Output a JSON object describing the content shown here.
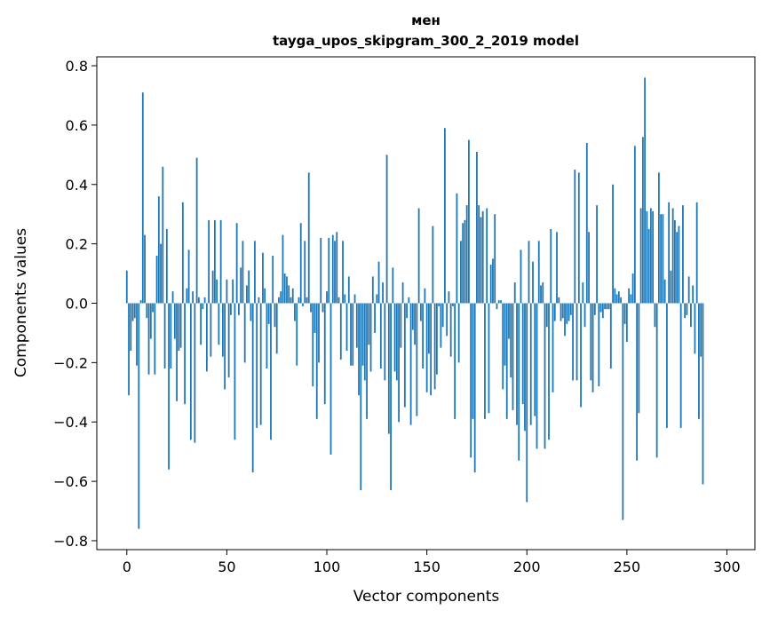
{
  "chart_data": {
    "type": "bar",
    "title": [
      "мен",
      "tayga_upos_skipgram_300_2_2019 model"
    ],
    "xlabel": "Vector components",
    "ylabel": "Components values",
    "xlim": [
      -15,
      314
    ],
    "ylim": [
      -0.83,
      0.83
    ],
    "x_ticks": [
      0,
      50,
      100,
      150,
      200,
      250,
      300
    ],
    "x_tick_labels": [
      "0",
      "50",
      "100",
      "150",
      "200",
      "250",
      "300"
    ],
    "y_ticks": [
      -0.8,
      -0.6,
      -0.4,
      -0.2,
      0.0,
      0.2,
      0.4,
      0.6,
      0.8
    ],
    "y_tick_labels": [
      "−0.8",
      "−0.6",
      "−0.4",
      "−0.2",
      "0.0",
      "0.2",
      "0.4",
      "0.6",
      "0.8"
    ],
    "bar_color": "#1f77b4",
    "values": [
      0.11,
      -0.31,
      -0.16,
      -0.06,
      -0.05,
      -0.21,
      -0.76,
      0.01,
      0.71,
      0.23,
      -0.05,
      -0.24,
      -0.12,
      -0.03,
      -0.24,
      0.16,
      0.36,
      0.2,
      0.46,
      -0.22,
      0.25,
      -0.56,
      -0.22,
      0.04,
      -0.12,
      -0.33,
      -0.16,
      -0.15,
      0.34,
      -0.34,
      0.05,
      0.18,
      -0.46,
      0.04,
      -0.47,
      0.49,
      0.02,
      -0.14,
      -0.02,
      0.02,
      -0.23,
      0.28,
      -0.18,
      0.11,
      0.28,
      0.08,
      -0.14,
      0.28,
      -0.18,
      -0.29,
      0.08,
      -0.25,
      -0.04,
      0.08,
      -0.46,
      0.27,
      -0.04,
      0.12,
      0.21,
      -0.2,
      0.06,
      0.11,
      -0.06,
      -0.57,
      0.21,
      -0.42,
      0.02,
      -0.41,
      0.17,
      0.05,
      -0.22,
      -0.07,
      -0.46,
      0.16,
      -0.08,
      -0.17,
      0.02,
      0.04,
      0.23,
      0.1,
      0.09,
      0.06,
      0.02,
      0.05,
      -0.06,
      -0.21,
      0.02,
      0.27,
      -0.01,
      0.21,
      0.02,
      0.44,
      -0.03,
      -0.28,
      -0.1,
      -0.39,
      -0.2,
      0.22,
      -0.03,
      -0.34,
      0.04,
      0.22,
      -0.51,
      0.23,
      0.21,
      0.24,
      0.02,
      -0.19,
      0.21,
      0.03,
      -0.16,
      0.09,
      -0.21,
      -0.21,
      0.03,
      -0.15,
      -0.31,
      -0.63,
      -0.21,
      -0.26,
      -0.39,
      -0.14,
      -0.23,
      0.09,
      -0.1,
      0.03,
      0.14,
      -0.22,
      0.07,
      -0.26,
      0.5,
      -0.44,
      -0.63,
      0.12,
      -0.23,
      -0.26,
      -0.4,
      -0.15,
      0.07,
      -0.35,
      -0.05,
      0.02,
      -0.41,
      -0.09,
      -0.14,
      -0.38,
      0.32,
      -0.06,
      -0.22,
      0.05,
      -0.3,
      -0.17,
      -0.31,
      0.26,
      -0.29,
      -0.24,
      -0.01,
      -0.15,
      -0.08,
      0.59,
      -0.11,
      0.04,
      -0.18,
      -0.01,
      -0.39,
      0.37,
      -0.2,
      0.21,
      0.27,
      0.28,
      0.33,
      0.55,
      -0.52,
      -0.39,
      -0.57,
      0.51,
      0.33,
      0.29,
      0.31,
      -0.39,
      0.32,
      -0.37,
      0.13,
      0.15,
      0.3,
      -0.02,
      0.01,
      0.01,
      -0.29,
      -0.21,
      -0.39,
      -0.12,
      -0.25,
      -0.36,
      0.07,
      -0.41,
      -0.53,
      0.18,
      -0.34,
      -0.43,
      -0.67,
      0.21,
      -0.41,
      0.14,
      -0.38,
      -0.49,
      0.21,
      0.06,
      0.07,
      -0.49,
      -0.08,
      -0.46,
      0.25,
      -0.3,
      -0.06,
      0.24,
      0.02,
      -0.06,
      -0.05,
      -0.11,
      -0.07,
      -0.06,
      -0.04,
      -0.26,
      0.45,
      -0.26,
      0.44,
      -0.35,
      0.07,
      -0.08,
      0.54,
      0.24,
      -0.26,
      -0.3,
      -0.04,
      0.33,
      -0.28,
      -0.03,
      -0.05,
      -0.02,
      -0.02,
      -0.02,
      -0.22,
      0.4,
      0.05,
      0.03,
      0.04,
      0.02,
      -0.73,
      -0.07,
      -0.13,
      0.05,
      0.03,
      0.1,
      0.53,
      -0.53,
      -0.37,
      0.32,
      0.56,
      0.76,
      0.31,
      0.25,
      0.32,
      0.31,
      -0.08,
      -0.52,
      0.44,
      0.3,
      0.3,
      0.08,
      -0.42,
      0.34,
      0.11,
      0.32,
      0.28,
      0.24,
      0.26,
      -0.42,
      0.33,
      -0.05,
      -0.04,
      0.09,
      -0.08,
      0.06,
      -0.17,
      0.34,
      -0.39,
      -0.18,
      -0.61
    ]
  }
}
